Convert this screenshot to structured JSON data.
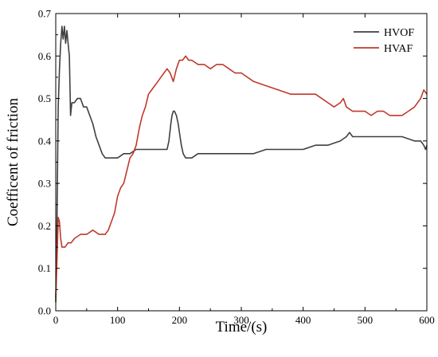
{
  "chart_data": {
    "type": "line",
    "title": "",
    "xlabel": "Time/(s)",
    "ylabel": "Coefficent of friction",
    "xlim": [
      0,
      600
    ],
    "ylim": [
      0,
      0.7
    ],
    "xticks": [
      "0",
      "100",
      "200",
      "300",
      "400",
      "500",
      "600"
    ],
    "yticks": [
      "0.0",
      "0.1",
      "0.2",
      "0.3",
      "0.4",
      "0.5",
      "0.6",
      "0.7"
    ],
    "grid": false,
    "legend_position": "top-right",
    "series": [
      {
        "name": "HVOF",
        "color": "#404040",
        "x": [
          0,
          2,
          4,
          6,
          8,
          10,
          12,
          14,
          16,
          18,
          20,
          22,
          24,
          26,
          30,
          35,
          40,
          45,
          50,
          55,
          60,
          65,
          70,
          75,
          80,
          85,
          90,
          95,
          100,
          110,
          120,
          130,
          140,
          150,
          160,
          170,
          180,
          183,
          186,
          188,
          190,
          192,
          195,
          198,
          200,
          203,
          206,
          210,
          215,
          220,
          230,
          240,
          250,
          260,
          280,
          300,
          320,
          340,
          360,
          380,
          400,
          420,
          440,
          460,
          470,
          475,
          480,
          490,
          500,
          510,
          520,
          540,
          560,
          580,
          590,
          595,
          598,
          600
        ],
        "values": [
          0.02,
          0.22,
          0.48,
          0.57,
          0.63,
          0.67,
          0.64,
          0.67,
          0.63,
          0.66,
          0.63,
          0.6,
          0.46,
          0.49,
          0.49,
          0.5,
          0.5,
          0.48,
          0.48,
          0.46,
          0.44,
          0.41,
          0.39,
          0.37,
          0.36,
          0.36,
          0.36,
          0.36,
          0.36,
          0.37,
          0.37,
          0.38,
          0.38,
          0.38,
          0.38,
          0.38,
          0.38,
          0.4,
          0.44,
          0.46,
          0.47,
          0.47,
          0.46,
          0.44,
          0.42,
          0.39,
          0.37,
          0.36,
          0.36,
          0.36,
          0.37,
          0.37,
          0.37,
          0.37,
          0.37,
          0.37,
          0.37,
          0.38,
          0.38,
          0.38,
          0.38,
          0.39,
          0.39,
          0.4,
          0.41,
          0.42,
          0.41,
          0.41,
          0.41,
          0.41,
          0.41,
          0.41,
          0.41,
          0.4,
          0.4,
          0.39,
          0.38,
          0.39
        ]
      },
      {
        "name": "HVAF",
        "color": "#c0392b",
        "x": [
          0,
          2,
          4,
          6,
          8,
          10,
          12,
          15,
          20,
          25,
          30,
          40,
          50,
          60,
          70,
          80,
          85,
          90,
          95,
          100,
          105,
          110,
          115,
          120,
          125,
          130,
          135,
          140,
          145,
          150,
          155,
          160,
          165,
          170,
          175,
          180,
          185,
          190,
          195,
          200,
          205,
          210,
          215,
          220,
          230,
          240,
          250,
          260,
          270,
          280,
          290,
          300,
          320,
          340,
          360,
          380,
          400,
          420,
          440,
          450,
          460,
          465,
          470,
          480,
          490,
          500,
          510,
          520,
          530,
          540,
          550,
          560,
          570,
          580,
          590,
          595,
          600
        ],
        "values": [
          0.03,
          0.12,
          0.22,
          0.21,
          0.17,
          0.15,
          0.15,
          0.15,
          0.16,
          0.16,
          0.17,
          0.18,
          0.18,
          0.19,
          0.18,
          0.18,
          0.19,
          0.21,
          0.23,
          0.27,
          0.29,
          0.3,
          0.33,
          0.36,
          0.37,
          0.39,
          0.43,
          0.46,
          0.48,
          0.51,
          0.52,
          0.53,
          0.54,
          0.55,
          0.56,
          0.57,
          0.56,
          0.54,
          0.57,
          0.59,
          0.59,
          0.6,
          0.59,
          0.59,
          0.58,
          0.58,
          0.57,
          0.58,
          0.58,
          0.57,
          0.56,
          0.56,
          0.54,
          0.53,
          0.52,
          0.51,
          0.51,
          0.51,
          0.49,
          0.48,
          0.49,
          0.5,
          0.48,
          0.47,
          0.47,
          0.47,
          0.46,
          0.47,
          0.47,
          0.46,
          0.46,
          0.46,
          0.47,
          0.48,
          0.5,
          0.52,
          0.51
        ]
      }
    ]
  }
}
